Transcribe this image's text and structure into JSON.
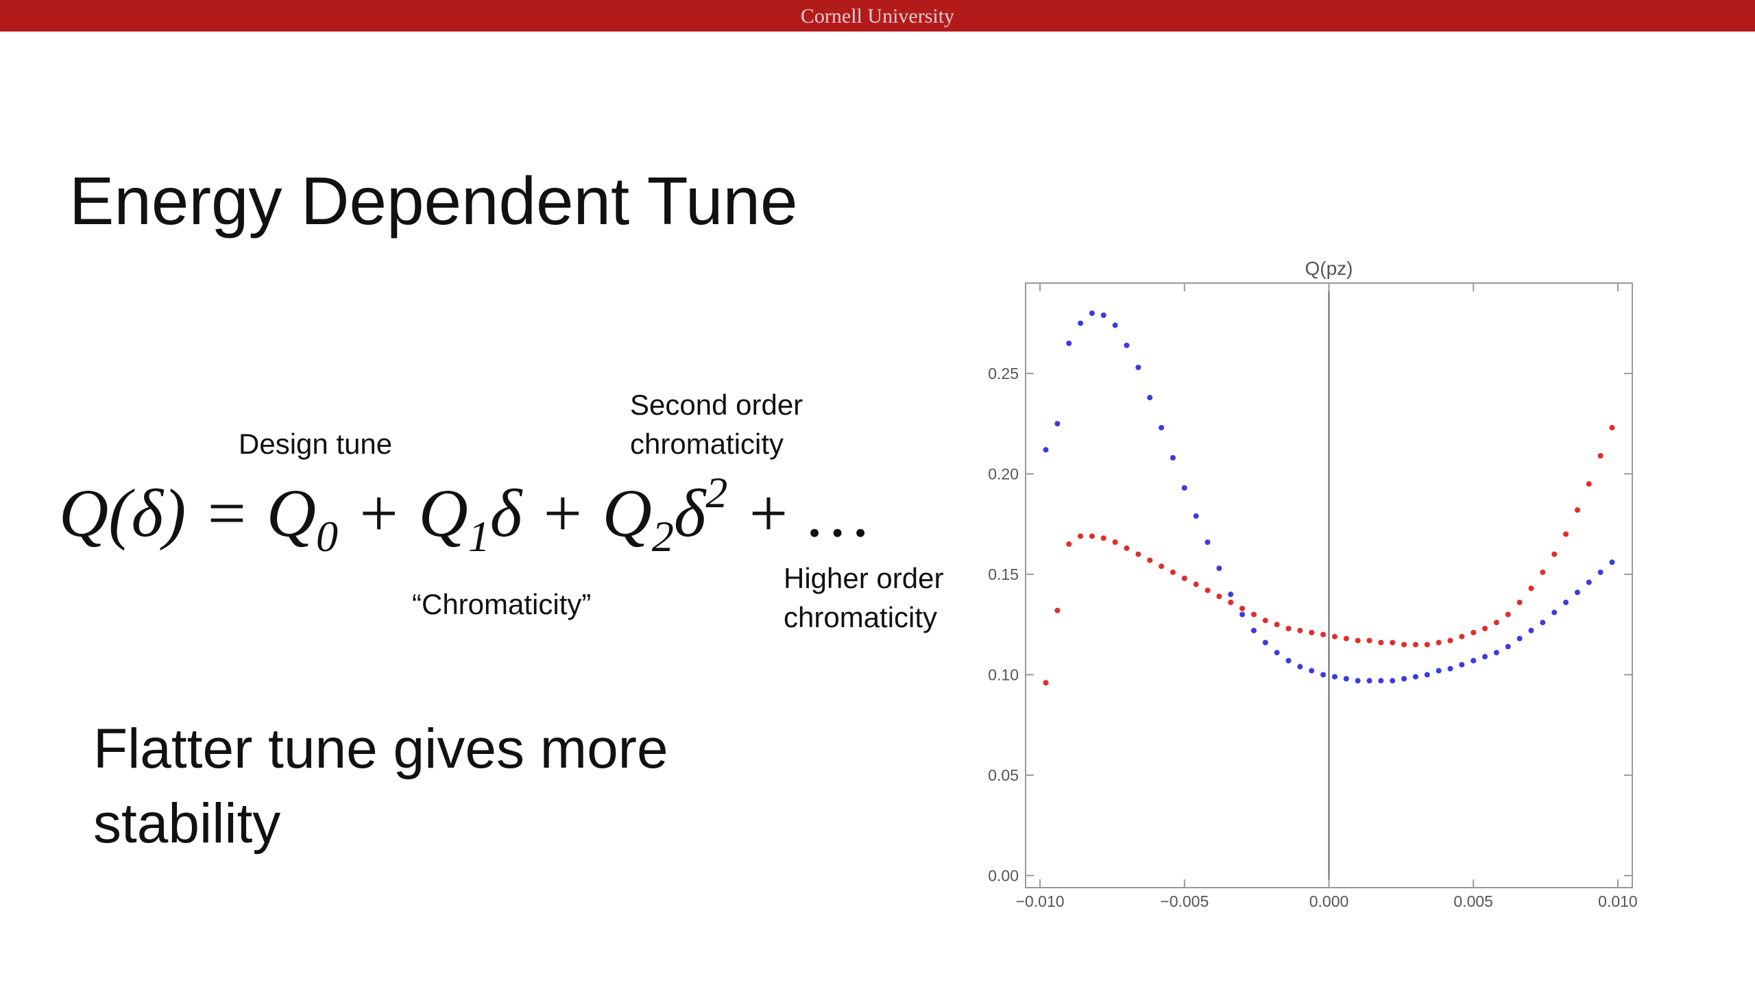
{
  "header": {
    "title": "Cornell University"
  },
  "slide": {
    "title": "Energy Dependent Tune",
    "equation": [
      "Q(δ) = Q",
      "0",
      " + Q",
      "1",
      "δ + Q",
      "2",
      "δ",
      "2",
      " +  …"
    ],
    "annotations": {
      "design_tune": "Design tune",
      "second_order": [
        "Second order",
        "chromaticity"
      ],
      "chromaticity": "“Chromaticity”",
      "higher_order": [
        "Higher order",
        "chromaticity"
      ]
    },
    "bullet": [
      "Flatter tune gives more",
      "stability"
    ]
  },
  "chart_data": {
    "type": "scatter",
    "title": "Q(pz)",
    "x": [
      -0.0098,
      -0.0094,
      -0.009,
      -0.0086,
      -0.0082,
      -0.0078,
      -0.0074,
      -0.007,
      -0.0066,
      -0.0062,
      -0.0058,
      -0.0054,
      -0.005,
      -0.0046,
      -0.0042,
      -0.0038,
      -0.0034,
      -0.003,
      -0.0026,
      -0.0022,
      -0.0018,
      -0.0014,
      -0.001,
      -0.0006,
      -0.0002,
      0.0002,
      0.0006,
      0.001,
      0.0014,
      0.0018,
      0.0022,
      0.0026,
      0.003,
      0.0034,
      0.0038,
      0.0042,
      0.0046,
      0.005,
      0.0054,
      0.0058,
      0.0062,
      0.0066,
      0.007,
      0.0074,
      0.0078,
      0.0082,
      0.0086,
      0.009,
      0.0094,
      0.0098
    ],
    "series": [
      {
        "color": "#3a3ae8",
        "values": [
          0.212,
          0.225,
          0.265,
          0.275,
          0.28,
          0.279,
          0.274,
          0.264,
          0.253,
          0.238,
          0.223,
          0.208,
          0.193,
          0.179,
          0.166,
          0.153,
          0.14,
          0.13,
          0.122,
          0.116,
          0.111,
          0.107,
          0.104,
          0.102,
          0.1,
          0.099,
          0.098,
          0.097,
          0.097,
          0.097,
          0.097,
          0.098,
          0.099,
          0.1,
          0.102,
          0.103,
          0.105,
          0.107,
          0.109,
          0.111,
          0.114,
          0.118,
          0.122,
          0.126,
          0.131,
          0.136,
          0.141,
          0.146,
          0.151,
          0.156
        ]
      },
      {
        "color": "#e82a2a",
        "values": [
          0.096,
          0.132,
          0.165,
          0.169,
          0.169,
          0.168,
          0.166,
          0.163,
          0.16,
          0.157,
          0.154,
          0.151,
          0.148,
          0.145,
          0.142,
          0.139,
          0.136,
          0.133,
          0.13,
          0.127,
          0.125,
          0.123,
          0.122,
          0.121,
          0.12,
          0.119,
          0.118,
          0.117,
          0.117,
          0.116,
          0.116,
          0.115,
          0.115,
          0.115,
          0.116,
          0.117,
          0.119,
          0.121,
          0.123,
          0.126,
          0.13,
          0.136,
          0.143,
          0.151,
          0.16,
          0.17,
          0.182,
          0.195,
          0.209,
          0.223
        ]
      }
    ],
    "xlim": [
      -0.0105,
      0.0105
    ],
    "ylim": [
      -0.006,
      0.295
    ],
    "xticks": [
      {
        "value": -0.01,
        "label": "−0.010"
      },
      {
        "value": -0.005,
        "label": "−0.005"
      },
      {
        "value": 0,
        "label": "0.000"
      },
      {
        "value": 0.005,
        "label": "0.005"
      },
      {
        "value": 0.01,
        "label": "0.010"
      }
    ],
    "yticks": [
      {
        "value": 0,
        "label": "0.00"
      },
      {
        "value": 0.05,
        "label": "0.05"
      },
      {
        "value": 0.1,
        "label": "0.10"
      },
      {
        "value": 0.15,
        "label": "0.15"
      },
      {
        "value": 0.2,
        "label": "0.20"
      },
      0.25
    ]
  }
}
